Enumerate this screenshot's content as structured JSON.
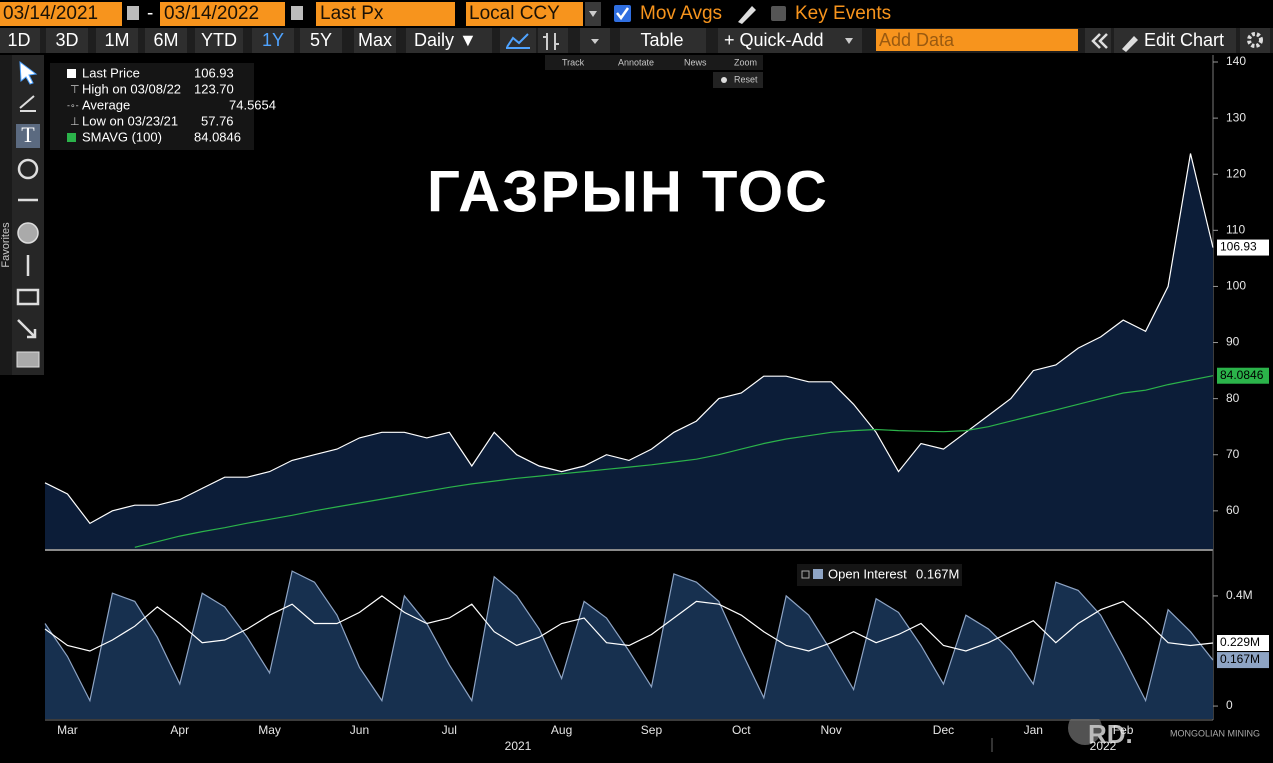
{
  "toolbar": {
    "start_date": "03/14/2021",
    "separator": "-",
    "end_date": "03/14/2022",
    "price_field": "Last Px",
    "currency": "Local CCY",
    "mov_avgs": "Mov Avgs",
    "key_events": "Key Events",
    "periods": [
      "1D",
      "3D",
      "1M",
      "6M",
      "YTD",
      "1Y",
      "5Y",
      "Max"
    ],
    "frequency": "Daily ▼",
    "table": "Table",
    "quick_add": "+ Quick-Add",
    "add_data": "Add Data",
    "edit_chart": "Edit Chart",
    "modes": [
      "Track",
      "Annotate",
      "News",
      "Zoom"
    ],
    "reset": "Reset"
  },
  "side_panel": {
    "favorites": "Favorites"
  },
  "watermark": {
    "logo": "RD.",
    "text": "MONGOLIAN MINING"
  },
  "chart_data": [
    {
      "type": "area",
      "title": "ГАЗРЫН ТОС",
      "categories": [
        null,
        "Mar",
        null,
        null,
        null,
        null,
        "Apr",
        null,
        null,
        null,
        "May",
        null,
        null,
        null,
        "Jun",
        null,
        null,
        null,
        "Jul",
        null,
        null,
        null,
        null,
        "Aug",
        null,
        null,
        null,
        "Sep",
        null,
        null,
        null,
        "Oct",
        null,
        null,
        null,
        "Nov",
        null,
        null,
        null,
        null,
        "Dec",
        null,
        null,
        null,
        "Jan",
        null,
        null,
        null,
        "Feb",
        null,
        null,
        null,
        null
      ],
      "year_labels": [
        "2021",
        "2022"
      ],
      "series": [
        {
          "name": "Last Price",
          "type": "area",
          "color": "#ffffff",
          "fill": "#0c1d38",
          "values": [
            65,
            63,
            57.76,
            60,
            61,
            61,
            62,
            64,
            66,
            66,
            67,
            69,
            70,
            71,
            73,
            74,
            74,
            73,
            74,
            68,
            74,
            70,
            68,
            67,
            68,
            70,
            69,
            71,
            74,
            76,
            80,
            81,
            84,
            84,
            83,
            83,
            79,
            74,
            67,
            72,
            71,
            74,
            77,
            80,
            85,
            86,
            89,
            91,
            94,
            92,
            100,
            123.7,
            106.93
          ]
        },
        {
          "name": "SMAVG (100)",
          "type": "line",
          "color": "#2bb34a",
          "values": [
            null,
            null,
            null,
            null,
            53.5,
            54.5,
            55.5,
            56.3,
            57,
            57.8,
            58.5,
            59.2,
            60,
            60.7,
            61.4,
            62.1,
            62.8,
            63.5,
            64.2,
            64.8,
            65.3,
            65.8,
            66.2,
            66.6,
            67,
            67.4,
            67.8,
            68.2,
            68.7,
            69.2,
            70,
            71,
            72,
            72.8,
            73.4,
            74,
            74.3,
            74.5,
            74.3,
            74.2,
            74.1,
            74.3,
            75,
            76,
            77,
            78,
            79,
            80,
            81,
            81.5,
            82.5,
            83.3,
            84.0846
          ]
        }
      ],
      "stats": [
        {
          "name": "High on 03/08/22",
          "value": 123.7,
          "value_label": "123.70"
        },
        {
          "name": "Average",
          "value": 74.5654
        },
        {
          "name": "Low on 03/23/21",
          "value": 57.76
        }
      ],
      "ylim": [
        53.2,
        141.25
      ],
      "yticks": [
        60,
        70,
        80,
        90,
        100,
        110,
        120,
        130,
        140
      ],
      "grid": false
    },
    {
      "type": "area",
      "series": [
        {
          "name": "Open Interest",
          "type": "area",
          "color": "#8ea4c4",
          "fill": "#17304f",
          "last_label": "0.167M",
          "values": [
            0.3,
            0.18,
            0.02,
            0.41,
            0.38,
            0.25,
            0.08,
            0.41,
            0.36,
            0.25,
            0.12,
            0.49,
            0.45,
            0.33,
            0.14,
            0.02,
            0.4,
            0.3,
            0.15,
            0.02,
            0.47,
            0.4,
            0.28,
            0.1,
            0.38,
            0.32,
            0.2,
            0.07,
            0.48,
            0.45,
            0.38,
            0.2,
            0.03,
            0.4,
            0.33,
            0.2,
            0.06,
            0.39,
            0.34,
            0.22,
            0.08,
            0.33,
            0.28,
            0.2,
            0.08,
            0.45,
            0.42,
            0.33,
            0.18,
            0.02,
            0.35,
            0.27,
            0.167
          ]
        },
        {
          "type": "line",
          "color": "#ffffff",
          "last_label": "0.229M",
          "values": [
            0.28,
            0.22,
            0.2,
            0.24,
            0.29,
            0.36,
            0.3,
            0.23,
            0.24,
            0.28,
            0.33,
            0.37,
            0.3,
            0.3,
            0.34,
            0.4,
            0.34,
            0.3,
            0.32,
            0.37,
            0.27,
            0.22,
            0.25,
            0.3,
            0.32,
            0.23,
            0.22,
            0.26,
            0.32,
            0.38,
            0.37,
            0.33,
            0.27,
            0.22,
            0.2,
            0.23,
            0.27,
            0.23,
            0.26,
            0.3,
            0.22,
            0.2,
            0.23,
            0.27,
            0.31,
            0.23,
            0.3,
            0.35,
            0.38,
            0.31,
            0.23,
            0.22,
            0.229
          ]
        }
      ],
      "ylim": [
        -0.047,
        0.545
      ],
      "yticks": [
        0,
        {
          "value": 0.4,
          "label": "0.4M"
        }
      ],
      "grid": false
    }
  ]
}
